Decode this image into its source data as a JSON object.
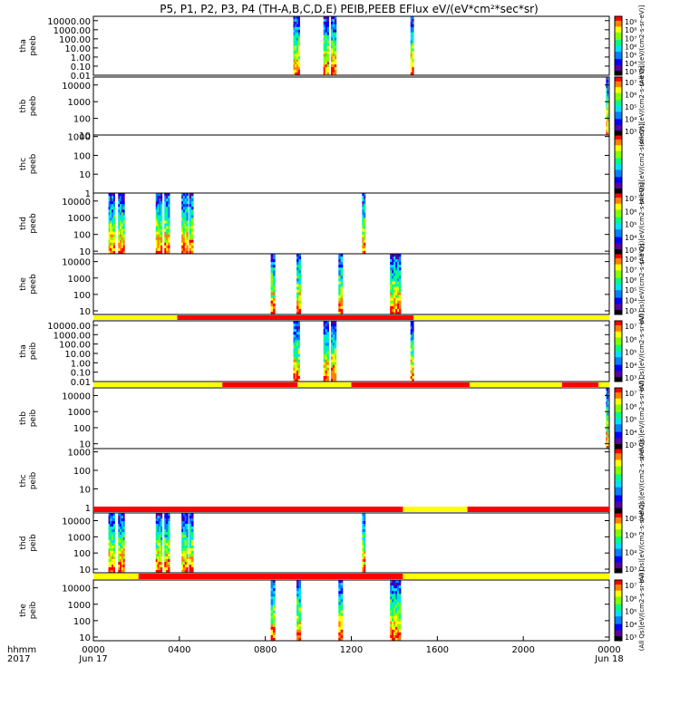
{
  "title": "P5, P1, P2, P3, P4 (TH-A,B,C,D,E) PEIB,PEEB EFlux eV/(eV*cm²*sec*sr)",
  "chart_data": {
    "type": "heatmap",
    "title": "P5, P1, P2, P3, P4 (TH-A,B,C,D,E) PEIB,PEEB EFlux eV/(eV*cm²*sec*sr)",
    "x_axis": {
      "row_labels": [
        "hhmm",
        "2017"
      ],
      "ticks": [
        "0000",
        "0400",
        "0800",
        "1200",
        "1600",
        "2000",
        "0000"
      ],
      "tick_hours": [
        0,
        4,
        8,
        12,
        16,
        20,
        24
      ],
      "date_labels": [
        "Jun 17",
        "Jun 18"
      ],
      "range_hours": [
        0,
        24
      ]
    },
    "panels": [
      {
        "probe": "tha",
        "product": "peeb",
        "y_log": true,
        "yticks": [
          "10000.00",
          "1000.00",
          "100.00",
          "10.00",
          "1.00",
          "0.10",
          "0.01"
        ],
        "ytick_values": [
          10000,
          1000,
          100,
          10,
          1,
          0.1,
          0.01
        ],
        "ylim": [
          0.01,
          30000
        ],
        "colorbar_ticks": [
          "10⁹",
          "10⁸",
          "10⁷",
          "10⁶",
          "10⁵",
          "10⁴",
          "10³"
        ],
        "colorbar_label": "(All Qs)[eV/(cm2-s-sr-eV)]",
        "bursts_hours": [
          [
            9.3,
            9.6
          ],
          [
            10.7,
            10.95
          ],
          [
            11.05,
            11.3
          ],
          [
            14.75,
            14.9
          ]
        ]
      },
      {
        "probe": "thb",
        "product": "peeb",
        "y_log": true,
        "yticks": [
          "10000",
          "1000",
          "100",
          "10"
        ],
        "ytick_values": [
          10000,
          1000,
          100,
          10
        ],
        "ylim": [
          10,
          30000
        ],
        "colorbar_ticks": [
          "10⁷",
          "10⁶",
          "10⁵",
          "10⁴",
          "10³"
        ],
        "colorbar_label": "(All Qs)[eV/(cm2-s-sr-eV)]",
        "bursts_hours": [
          [
            23.85,
            23.95
          ]
        ]
      },
      {
        "probe": "thc",
        "product": "peeb",
        "y_log": true,
        "yticks": [
          "1000",
          "100",
          "10",
          "1"
        ],
        "ytick_values": [
          1000,
          100,
          10,
          1
        ],
        "ylim": [
          1,
          1200
        ],
        "colorbar_ticks": [],
        "colorbar_label": "(All Qs)[eV/(cm2-s-sr-eV)]",
        "bursts_hours": []
      },
      {
        "probe": "thd",
        "product": "peeb",
        "y_log": true,
        "yticks": [
          "10000",
          "1000",
          "100",
          "10"
        ],
        "ytick_values": [
          10000,
          1000,
          100,
          10
        ],
        "ylim": [
          7,
          30000
        ],
        "colorbar_ticks": [
          "10⁷",
          "10⁶",
          "10⁵",
          "10⁴",
          "10³"
        ],
        "colorbar_label": "(All Qs)[eV/(cm2-s-sr-eV)]",
        "bursts_hours": [
          [
            0.7,
            1.0
          ],
          [
            1.15,
            1.45
          ],
          [
            2.9,
            3.2
          ],
          [
            3.3,
            3.55
          ],
          [
            4.1,
            4.4
          ],
          [
            4.45,
            4.65
          ],
          [
            12.5,
            12.65
          ]
        ]
      },
      {
        "probe": "the",
        "product": "peeb",
        "y_log": true,
        "yticks": [
          "10000",
          "1000",
          "100",
          "10"
        ],
        "ytick_values": [
          10000,
          1000,
          100,
          10
        ],
        "ylim": [
          6,
          30000
        ],
        "colorbar_ticks": [
          "10⁸",
          "10⁷",
          "10⁶",
          "10⁵",
          "10⁴",
          "10³"
        ],
        "colorbar_label": "(All Qs)[eV/(cm2-s-sr-eV)]",
        "bursts_hours": [
          [
            8.25,
            8.45
          ],
          [
            9.45,
            9.65
          ],
          [
            11.4,
            11.6
          ],
          [
            13.8,
            14.3
          ]
        ]
      },
      {
        "probe": "tha",
        "product": "peib",
        "y_log": true,
        "yticks": [
          "10000.00",
          "1000.00",
          "100.00",
          "10.00",
          "1.00",
          "0.10",
          "0.01"
        ],
        "ytick_values": [
          10000,
          1000,
          100,
          10,
          1,
          0.1,
          0.01
        ],
        "ylim": [
          0.01,
          30000
        ],
        "colorbar_ticks": [
          "10⁷",
          "10⁶",
          "10⁵",
          "10⁴",
          "10³"
        ],
        "colorbar_label": "(All Qs)[eV/(cm2-s-sr-eV)]",
        "bursts_hours": [
          [
            9.3,
            9.6
          ],
          [
            10.7,
            10.95
          ],
          [
            11.05,
            11.3
          ],
          [
            14.75,
            14.9
          ]
        ]
      },
      {
        "probe": "thb",
        "product": "peib",
        "y_log": true,
        "yticks": [
          "10000",
          "1000",
          "100",
          "10"
        ],
        "ytick_values": [
          10000,
          1000,
          100,
          10
        ],
        "ylim": [
          5,
          30000
        ],
        "colorbar_ticks": [
          "10⁷",
          "10⁶",
          "10⁵",
          "10⁴",
          "10³"
        ],
        "colorbar_label": "(All Qs)[eV/(cm2-s-sr-eV)]",
        "bursts_hours": [
          [
            23.85,
            23.95
          ]
        ]
      },
      {
        "probe": "thc",
        "product": "peib",
        "y_log": true,
        "yticks": [
          "1000",
          "100",
          "10",
          "1"
        ],
        "ytick_values": [
          1000,
          100,
          10,
          1
        ],
        "ylim": [
          0.5,
          1500
        ],
        "colorbar_ticks": [],
        "colorbar_label": "(All Qs)[eV/(cm2-s-sr-eV)]",
        "bursts_hours": []
      },
      {
        "probe": "thd",
        "product": "peib",
        "y_log": true,
        "yticks": [
          "10000",
          "1000",
          "100",
          "10"
        ],
        "ytick_values": [
          10000,
          1000,
          100,
          10
        ],
        "ylim": [
          6,
          30000
        ],
        "colorbar_ticks": [
          "10⁶",
          "10⁵",
          "10⁴",
          "10³"
        ],
        "colorbar_label": "(All Qs)[eV/(cm2-s-sr-eV)]",
        "bursts_hours": [
          [
            0.7,
            1.0
          ],
          [
            1.15,
            1.45
          ],
          [
            2.9,
            3.2
          ],
          [
            3.3,
            3.55
          ],
          [
            4.1,
            4.4
          ],
          [
            4.45,
            4.65
          ],
          [
            12.5,
            12.65
          ]
        ]
      },
      {
        "probe": "the",
        "product": "peib",
        "y_log": true,
        "yticks": [
          "10000",
          "1000",
          "100",
          "10"
        ],
        "ytick_values": [
          10000,
          1000,
          100,
          10
        ],
        "ylim": [
          6,
          30000
        ],
        "colorbar_ticks": [
          "10⁷",
          "10⁶",
          "10⁵",
          "10⁴",
          "10³"
        ],
        "colorbar_label": "(All Qs)[eV/(cm2-s-sr-eV)]",
        "bursts_hours": [
          [
            8.25,
            8.45
          ],
          [
            9.45,
            9.65
          ],
          [
            11.4,
            11.6
          ],
          [
            13.8,
            14.3
          ]
        ]
      }
    ],
    "mode_bars": [
      {
        "after_panel": 4,
        "segments": [
          [
            0,
            3.9,
            "#ffff00"
          ],
          [
            3.9,
            14.9,
            "#ff0000"
          ],
          [
            14.9,
            24,
            "#ffff00"
          ]
        ]
      },
      {
        "after_panel": 5,
        "segments": [
          [
            0,
            6.0,
            "#ffff00"
          ],
          [
            6.0,
            9.5,
            "#ff0000"
          ],
          [
            9.5,
            12.0,
            "#ffff00"
          ],
          [
            12.0,
            17.5,
            "#ff0000"
          ],
          [
            17.5,
            21.8,
            "#ffff00"
          ],
          [
            21.8,
            23.5,
            "#ff0000"
          ],
          [
            23.5,
            24,
            "#ffff00"
          ]
        ]
      },
      {
        "after_panel": 7,
        "segments": [
          [
            0,
            14.4,
            "#ff0000"
          ],
          [
            14.4,
            17.4,
            "#ffff00"
          ],
          [
            17.4,
            24,
            "#ff0000"
          ]
        ]
      },
      {
        "after_panel": 8,
        "segments": [
          [
            0,
            2.1,
            "#ffff00"
          ],
          [
            2.1,
            14.4,
            "#ff0000"
          ],
          [
            14.4,
            24,
            "#ffff00"
          ]
        ]
      }
    ],
    "colormap": [
      "#000000",
      "#5a00a0",
      "#0000ff",
      "#0080ff",
      "#00e0ff",
      "#00ff80",
      "#80ff00",
      "#ffff00",
      "#ff8000",
      "#ff0000"
    ]
  }
}
